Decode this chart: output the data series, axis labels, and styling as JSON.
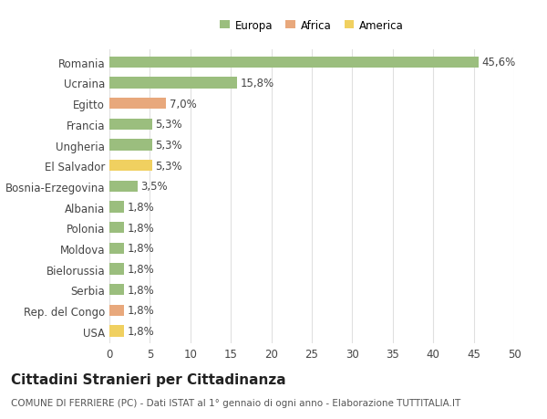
{
  "categories": [
    "Romania",
    "Ucraina",
    "Egitto",
    "Francia",
    "Ungheria",
    "El Salvador",
    "Bosnia-Erzegovina",
    "Albania",
    "Polonia",
    "Moldova",
    "Bielorussia",
    "Serbia",
    "Rep. del Congo",
    "USA"
  ],
  "values": [
    45.6,
    15.8,
    7.0,
    5.3,
    5.3,
    5.3,
    3.5,
    1.8,
    1.8,
    1.8,
    1.8,
    1.8,
    1.8,
    1.8
  ],
  "labels": [
    "45,6%",
    "15,8%",
    "7,0%",
    "5,3%",
    "5,3%",
    "5,3%",
    "3,5%",
    "1,8%",
    "1,8%",
    "1,8%",
    "1,8%",
    "1,8%",
    "1,8%",
    "1,8%"
  ],
  "colors": [
    "#9bbe7e",
    "#9bbe7e",
    "#e8a87c",
    "#9bbe7e",
    "#9bbe7e",
    "#f0d060",
    "#9bbe7e",
    "#9bbe7e",
    "#9bbe7e",
    "#9bbe7e",
    "#9bbe7e",
    "#9bbe7e",
    "#e8a87c",
    "#f0d060"
  ],
  "legend_labels": [
    "Europa",
    "Africa",
    "America"
  ],
  "legend_colors": [
    "#9bbe7e",
    "#e8a87c",
    "#f0d060"
  ],
  "title": "Cittadini Stranieri per Cittadinanza",
  "subtitle": "COMUNE DI FERRIERE (PC) - Dati ISTAT al 1° gennaio di ogni anno - Elaborazione TUTTITALIA.IT",
  "xlim": [
    0,
    50
  ],
  "xticks": [
    0,
    5,
    10,
    15,
    20,
    25,
    30,
    35,
    40,
    45,
    50
  ],
  "background_color": "#ffffff",
  "grid_color": "#e0e0e0",
  "bar_height": 0.55,
  "label_fontsize": 8.5,
  "tick_fontsize": 8.5,
  "title_fontsize": 11,
  "subtitle_fontsize": 7.5
}
